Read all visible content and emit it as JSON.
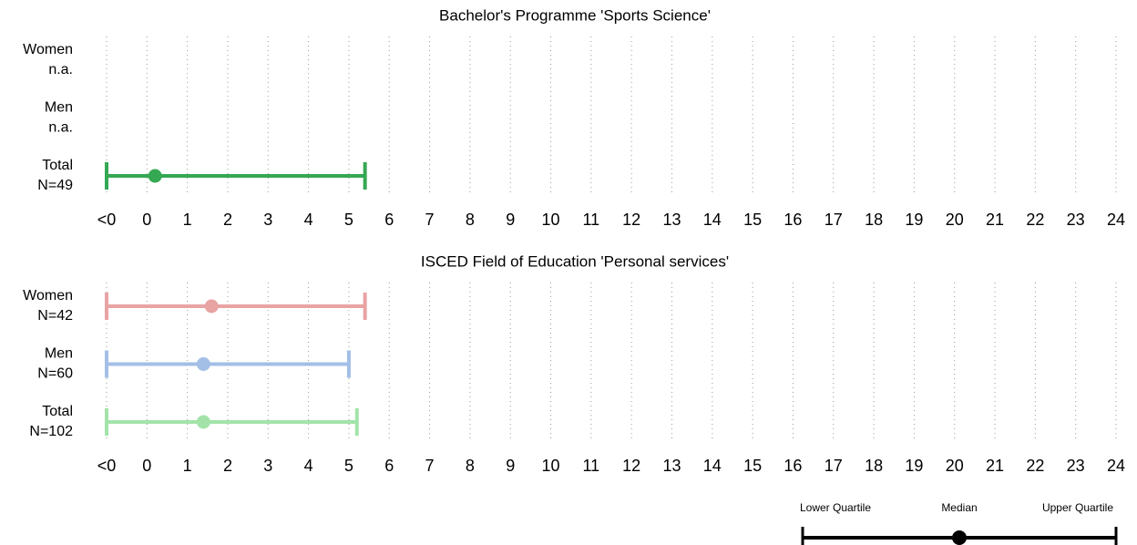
{
  "chart_data": [
    {
      "type": "range",
      "title": "Bachelor's Programme 'Sports Science'",
      "categories": [
        "Women",
        "Men",
        "Total"
      ],
      "sublabels": [
        "n.a.",
        "n.a.",
        "N=49"
      ],
      "lower": [
        null,
        null,
        -1
      ],
      "median": [
        null,
        null,
        0.2
      ],
      "upper": [
        null,
        null,
        5.4
      ],
      "colors": [
        null,
        null,
        "#34a853"
      ],
      "xlim": [
        -1,
        24
      ],
      "xticks": [
        {
          "value": -1,
          "label": "<0"
        },
        0,
        1,
        2,
        3,
        4,
        5,
        6,
        7,
        8,
        9,
        10,
        11,
        12,
        13,
        14,
        15,
        16,
        17,
        18,
        19,
        20,
        21,
        22,
        23,
        24
      ],
      "grid": true
    },
    {
      "type": "range",
      "title": "ISCED Field of Education 'Personal services'",
      "categories": [
        "Women",
        "Men",
        "Total"
      ],
      "sublabels": [
        "N=42",
        "N=60",
        "N=102"
      ],
      "lower": [
        -1,
        -1,
        -1
      ],
      "median": [
        1.6,
        1.4,
        1.4
      ],
      "upper": [
        5.4,
        5.0,
        5.2
      ],
      "colors": [
        "#e8a3a3",
        "#a3bfe6",
        "#a3e3aa"
      ],
      "xlim": [
        -1,
        24
      ],
      "xticks": [
        {
          "value": -1,
          "label": "<0"
        },
        0,
        1,
        2,
        3,
        4,
        5,
        6,
        7,
        8,
        9,
        10,
        11,
        12,
        13,
        14,
        15,
        16,
        17,
        18,
        19,
        20,
        21,
        22,
        23,
        24
      ],
      "grid": true
    }
  ],
  "legend": {
    "labels": [
      "Lower Quartile",
      "Median",
      "Upper Quartile"
    ]
  }
}
